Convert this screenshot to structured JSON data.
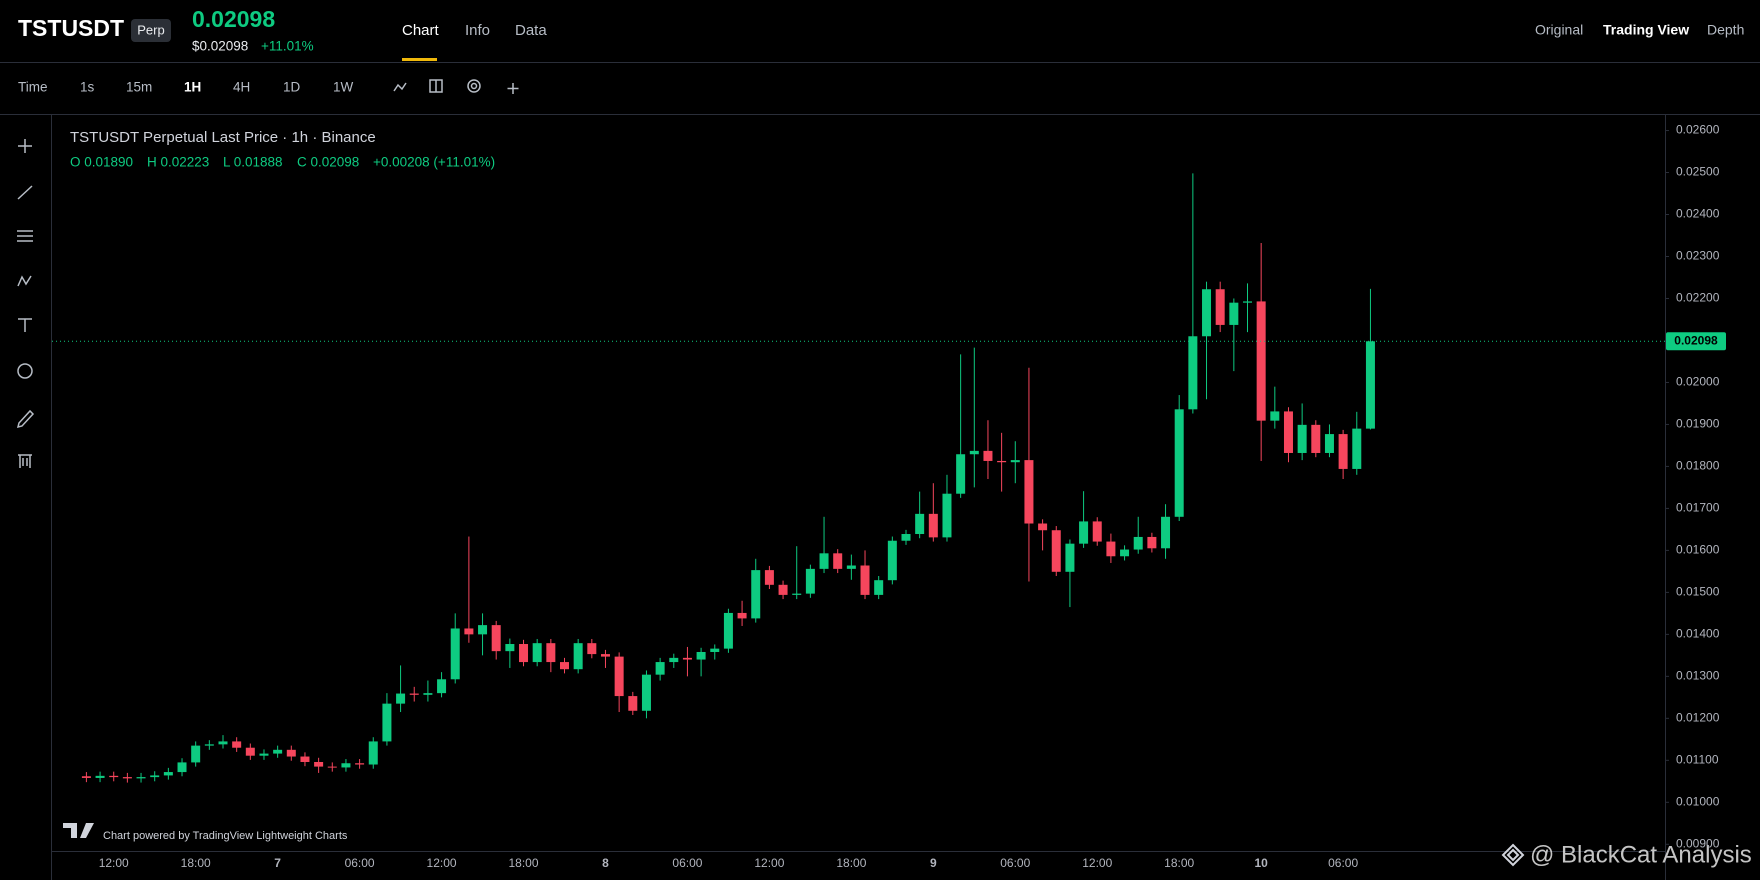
{
  "header": {
    "symbol": "TSTUSDT",
    "badge": "Perp",
    "price": "0.02098",
    "price_usd": "$0.02098",
    "change": "+11.01%",
    "tabs": [
      "Chart",
      "Info",
      "Data"
    ],
    "views": [
      "Original",
      "Trading View",
      "Depth"
    ]
  },
  "toolbar": {
    "intervals": [
      "Time",
      "1s",
      "15m",
      "1H",
      "4H",
      "1D",
      "1W"
    ]
  },
  "legend": {
    "title": "TSTUSDT Perpetual Last Price · 1h · Binance",
    "ohlc": [
      "O 0.01890",
      "H 0.02223",
      "L 0.01888",
      "C 0.02098",
      "+0.00208 (+11.01%)"
    ]
  },
  "chart_data": {
    "type": "candlestick",
    "categories": [
      null,
      null,
      "12:00",
      null,
      null,
      null,
      null,
      null,
      "18:00",
      null,
      null,
      null,
      null,
      null,
      "7",
      null,
      null,
      null,
      null,
      null,
      "06:00",
      null,
      null,
      null,
      null,
      null,
      "12:00",
      null,
      null,
      null,
      null,
      null,
      "18:00",
      null,
      null,
      null,
      null,
      null,
      "8",
      null,
      null,
      null,
      null,
      null,
      "06:00",
      null,
      null,
      null,
      null,
      null,
      "12:00",
      null,
      null,
      null,
      null,
      null,
      "18:00",
      null,
      null,
      null,
      null,
      null,
      "9",
      null,
      null,
      null,
      null,
      null,
      "06:00",
      null,
      null,
      null,
      null,
      null,
      "12:00",
      null,
      null,
      null,
      null,
      null,
      "18:00",
      null,
      null,
      null,
      null,
      null,
      "10",
      null,
      null,
      null,
      null,
      null,
      "06:00",
      null,
      null
    ],
    "open": [
      0.01062,
      0.01058,
      0.01063,
      0.0106,
      0.01057,
      0.0106,
      0.01064,
      0.01072,
      0.01095,
      0.01135,
      0.01138,
      0.01145,
      0.0113,
      0.01111,
      0.01116,
      0.01125,
      0.01109,
      0.01096,
      0.01085,
      0.01083,
      0.01093,
      0.0109,
      0.01145,
      0.01235,
      0.01259,
      0.01256,
      0.0126,
      0.01293,
      0.01414,
      0.014,
      0.01422,
      0.0136,
      0.01377,
      0.01334,
      0.01379,
      0.01334,
      0.01317,
      0.01379,
      0.01353,
      0.01347,
      0.01253,
      0.01218,
      0.01304,
      0.01334,
      0.01344,
      0.0134,
      0.01358,
      0.01366,
      0.01451,
      0.01438,
      0.01553,
      0.01518,
      0.01494,
      0.01497,
      0.01556,
      0.01593,
      0.01556,
      0.01564,
      0.01494,
      0.01529,
      0.01623,
      0.01639,
      0.01687,
      0.01631,
      0.01735,
      0.01829,
      0.01837,
      0.01813,
      0.0181,
      0.01815,
      0.01664,
      0.01648,
      0.01549,
      0.01616,
      0.01669,
      0.01621,
      0.01586,
      0.01602,
      0.01632,
      0.01605,
      0.0168,
      0.01936,
      0.0211,
      0.02222,
      0.02137,
      0.0219,
      0.02193,
      0.01909,
      0.01931,
      0.01832,
      0.01899,
      0.01832,
      0.01877,
      0.01794,
      0.0189
    ],
    "high": [
      0.01072,
      0.01073,
      0.01073,
      0.0107,
      0.0107,
      0.01074,
      0.01082,
      0.01105,
      0.01145,
      0.01148,
      0.0116,
      0.01155,
      0.0114,
      0.01126,
      0.01135,
      0.01135,
      0.01119,
      0.01106,
      0.01095,
      0.01103,
      0.01103,
      0.01155,
      0.0126,
      0.01326,
      0.01275,
      0.0129,
      0.0131,
      0.0145,
      0.01633,
      0.0145,
      0.01432,
      0.0139,
      0.01387,
      0.01389,
      0.01389,
      0.01344,
      0.01389,
      0.01389,
      0.01363,
      0.01357,
      0.01263,
      0.01314,
      0.01344,
      0.01354,
      0.0137,
      0.01368,
      0.01376,
      0.01461,
      0.0148,
      0.0158,
      0.01563,
      0.01528,
      0.0161,
      0.01566,
      0.0168,
      0.01603,
      0.0159,
      0.016,
      0.01539,
      0.01633,
      0.01649,
      0.0174,
      0.0176,
      0.0178,
      0.02067,
      0.02083,
      0.0191,
      0.0188,
      0.0186,
      0.02035,
      0.01674,
      0.01658,
      0.01626,
      0.01741,
      0.01679,
      0.0164,
      0.01612,
      0.0168,
      0.01642,
      0.0171,
      0.0197,
      0.02498,
      0.0224,
      0.0224,
      0.022,
      0.02236,
      0.02332,
      0.0199,
      0.01941,
      0.0195,
      0.0191,
      0.019,
      0.01887,
      0.0193,
      0.02223
    ],
    "low": [
      0.01048,
      0.01048,
      0.0105,
      0.01047,
      0.01047,
      0.0105,
      0.01054,
      0.01062,
      0.01085,
      0.01125,
      0.01128,
      0.0112,
      0.01101,
      0.01101,
      0.01106,
      0.01099,
      0.01086,
      0.0107,
      0.01073,
      0.01073,
      0.0108,
      0.0108,
      0.01135,
      0.01215,
      0.0124,
      0.0124,
      0.0125,
      0.01283,
      0.0138,
      0.0135,
      0.0134,
      0.0132,
      0.01324,
      0.01324,
      0.0131,
      0.01307,
      0.01307,
      0.01343,
      0.0132,
      0.01215,
      0.01208,
      0.012,
      0.0129,
      0.0132,
      0.013,
      0.013,
      0.0134,
      0.01356,
      0.0142,
      0.01428,
      0.01508,
      0.01484,
      0.01484,
      0.01487,
      0.01546,
      0.01546,
      0.0153,
      0.01484,
      0.01484,
      0.01519,
      0.01613,
      0.01629,
      0.01621,
      0.01621,
      0.01725,
      0.0175,
      0.0177,
      0.0174,
      0.0176,
      0.01526,
      0.016,
      0.01539,
      0.01465,
      0.01606,
      0.01611,
      0.0157,
      0.01576,
      0.01592,
      0.01595,
      0.0158,
      0.0167,
      0.01926,
      0.0196,
      0.0212,
      0.02027,
      0.0212,
      0.01813,
      0.0189,
      0.0181,
      0.01815,
      0.01822,
      0.01822,
      0.0177,
      0.0178,
      0.01888
    ],
    "close": [
      0.01058,
      0.01063,
      0.0106,
      0.01057,
      0.0106,
      0.01064,
      0.01072,
      0.01095,
      0.01135,
      0.01138,
      0.01145,
      0.0113,
      0.01111,
      0.01116,
      0.01125,
      0.01109,
      0.01096,
      0.01085,
      0.01083,
      0.01093,
      0.0109,
      0.01145,
      0.01235,
      0.01259,
      0.01256,
      0.0126,
      0.01293,
      0.01414,
      0.014,
      0.01422,
      0.0136,
      0.01377,
      0.01334,
      0.01379,
      0.01334,
      0.01317,
      0.01379,
      0.01353,
      0.01347,
      0.01253,
      0.01218,
      0.01304,
      0.01334,
      0.01344,
      0.0134,
      0.01358,
      0.01366,
      0.01451,
      0.01438,
      0.01553,
      0.01518,
      0.01494,
      0.01497,
      0.01556,
      0.01593,
      0.01556,
      0.01564,
      0.01494,
      0.01529,
      0.01623,
      0.01639,
      0.01687,
      0.01631,
      0.01735,
      0.01829,
      0.01837,
      0.01813,
      0.0181,
      0.01815,
      0.01664,
      0.01648,
      0.01549,
      0.01616,
      0.01669,
      0.01621,
      0.01586,
      0.01602,
      0.01632,
      0.01605,
      0.0168,
      0.01936,
      0.0211,
      0.02222,
      0.02137,
      0.0219,
      0.02193,
      0.01909,
      0.01931,
      0.01832,
      0.01899,
      0.01832,
      0.01877,
      0.01794,
      0.0189,
      0.02098
    ],
    "up_color": "#0ecb81",
    "down_color": "#f6465d",
    "ylim": [
      0.00884,
      0.02637
    ],
    "yticks": [
      {
        "value": 0.009,
        "label": "0.00900"
      },
      {
        "value": 0.01,
        "label": "0.01000"
      },
      {
        "value": 0.011,
        "label": "0.01100"
      },
      {
        "value": 0.012,
        "label": "0.01200"
      },
      {
        "value": 0.013,
        "label": "0.01300"
      },
      {
        "value": 0.014,
        "label": "0.01400"
      },
      {
        "value": 0.015,
        "label": "0.01500"
      },
      {
        "value": 0.016,
        "label": "0.01600"
      },
      {
        "value": 0.017,
        "label": "0.01700"
      },
      {
        "value": 0.018,
        "label": "0.01800"
      },
      {
        "value": 0.019,
        "label": "0.01900"
      },
      {
        "value": 0.02,
        "label": "0.02000"
      },
      {
        "value": 0.021,
        "label": "0.02100"
      },
      {
        "value": 0.022,
        "label": "0.02200"
      },
      {
        "value": 0.023,
        "label": "0.02300"
      },
      {
        "value": 0.024,
        "label": "0.02400"
      },
      {
        "value": 0.025,
        "label": "0.02500"
      },
      {
        "value": 0.026,
        "label": "0.02600"
      }
    ],
    "last_price_label": "0.02098",
    "grid": false
  },
  "footer": {
    "attribution": "Chart powered by TradingView Lightweight Charts",
    "watermark": "@ BlackCat Analysis"
  }
}
